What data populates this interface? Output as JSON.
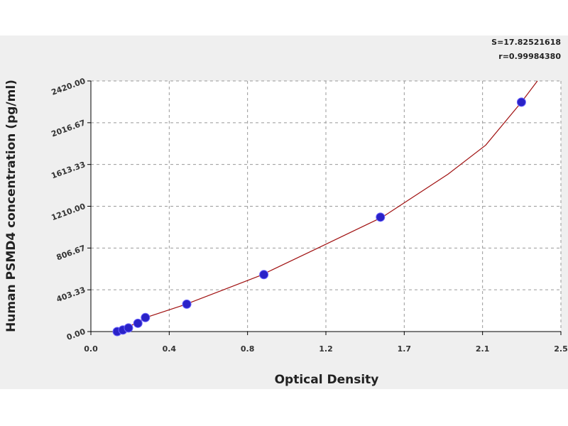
{
  "chart_data": {
    "type": "scatter",
    "x_label": "Optical Density",
    "y_label": "Human PSMD4 concentration (pg/ml)",
    "annotations": [
      "S=17.82521618",
      "r=0.99984380"
    ],
    "x": [
      0.14,
      0.17,
      0.2,
      0.25,
      0.29,
      0.51,
      0.92,
      1.54,
      2.29
    ],
    "values": [
      0,
      15,
      35,
      80,
      135,
      265,
      550,
      1105,
      2215
    ],
    "color": "#2a22c8",
    "fit": {
      "color": "#a01010",
      "x": [
        0.13,
        0.2,
        0.3,
        0.5,
        0.7,
        0.9,
        1.2,
        1.55,
        1.9,
        2.1,
        2.29,
        2.375
      ],
      "values": [
        0,
        45,
        140,
        260,
        400,
        540,
        800,
        1105,
        1520,
        1800,
        2215,
        2420
      ]
    },
    "xlim": [
      0,
      2.5
    ],
    "xticks": [
      {
        "value": 0,
        "label": "0.0"
      },
      {
        "value": 0.4167,
        "label": "0.4"
      },
      {
        "value": 0.8333,
        "label": "0.8"
      },
      {
        "value": 1.25,
        "label": "1.2"
      },
      {
        "value": 1.6667,
        "label": "1.7"
      },
      {
        "value": 2.0833,
        "label": "2.1"
      },
      2.5
    ],
    "ylim": [
      0,
      2420
    ],
    "yticks": [
      {
        "value": 0,
        "label": "0.00"
      },
      403.33,
      806.67,
      {
        "value": 1210,
        "label": "1210.00"
      },
      1613.33,
      2016.67,
      {
        "value": 2420,
        "label": "2420.00"
      }
    ],
    "grid": true
  }
}
